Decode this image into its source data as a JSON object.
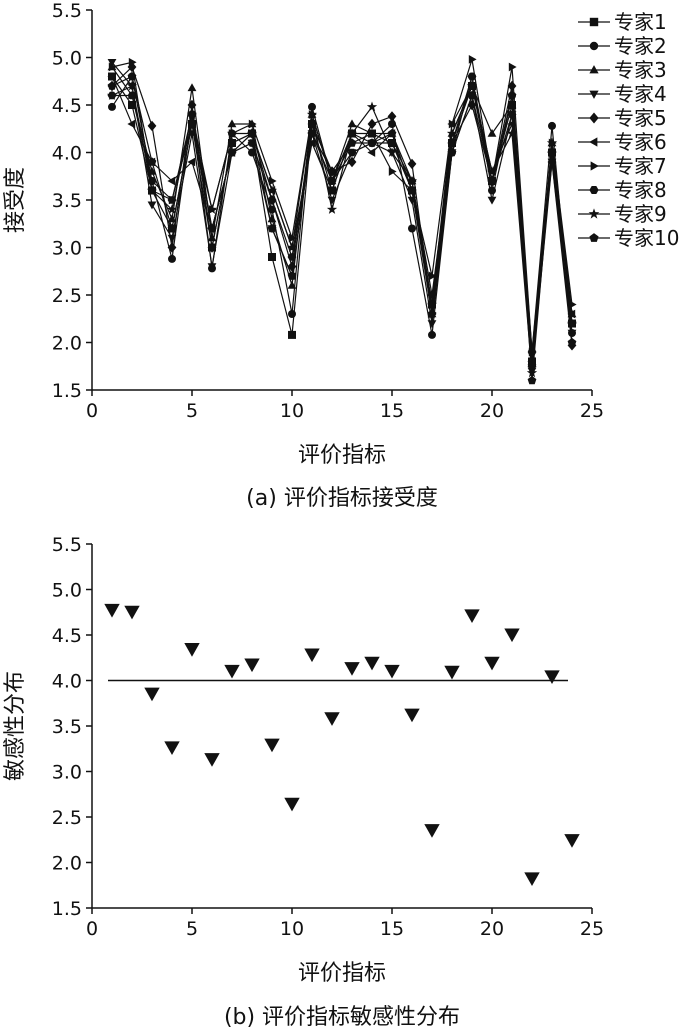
{
  "chart_data": [
    {
      "id": "a",
      "type": "line",
      "caption": "(a) 评价指标接受度",
      "xlabel": "评价指标",
      "ylabel": "接受度",
      "xlim": [
        0,
        25
      ],
      "ylim": [
        1.5,
        5.5
      ],
      "xticks": [
        0,
        5,
        10,
        15,
        20,
        25
      ],
      "yticks": [
        1.5,
        2.0,
        2.5,
        3.0,
        3.5,
        4.0,
        4.5,
        5.0,
        5.5
      ],
      "ytick_labels": [
        "1.5",
        "2.0",
        "2.5",
        "3.0",
        "3.5",
        "4.0",
        "4.5",
        "5.0",
        "5.5"
      ],
      "legend_position": "right",
      "x": [
        1,
        2,
        3,
        4,
        5,
        6,
        7,
        8,
        9,
        10,
        11,
        12,
        13,
        14,
        15,
        16,
        17,
        18,
        19,
        20,
        21,
        22,
        23,
        24
      ],
      "series": [
        {
          "name": "专家1",
          "marker": "square",
          "values": [
            4.8,
            4.5,
            3.6,
            3.2,
            4.3,
            3.0,
            4.1,
            4.2,
            2.9,
            2.08,
            4.3,
            3.6,
            4.2,
            4.2,
            4.1,
            3.6,
            2.4,
            4.1,
            4.7,
            3.7,
            4.5,
            1.8,
            4.0,
            2.2
          ]
        },
        {
          "name": "专家2",
          "marker": "circle",
          "values": [
            4.48,
            4.8,
            3.7,
            2.88,
            4.4,
            2.78,
            4.2,
            4.0,
            3.4,
            2.3,
            4.48,
            3.7,
            4.2,
            4.1,
            4.3,
            3.2,
            2.08,
            4.0,
            4.8,
            3.6,
            4.6,
            1.9,
            4.28,
            2.1
          ]
        },
        {
          "name": "专家3",
          "marker": "triangle",
          "values": [
            4.9,
            4.6,
            3.8,
            3.3,
            4.68,
            3.1,
            4.3,
            4.3,
            3.3,
            2.6,
            4.4,
            3.7,
            4.3,
            4.2,
            4.2,
            3.7,
            2.3,
            4.2,
            4.7,
            4.2,
            4.5,
            1.8,
            4.1,
            2.3
          ]
        },
        {
          "name": "专家4",
          "marker": "tri_down",
          "values": [
            4.95,
            4.7,
            3.45,
            3.1,
            4.2,
            2.8,
            4.0,
            4.1,
            3.2,
            2.7,
            4.2,
            3.5,
            4.0,
            4.1,
            4.0,
            3.5,
            2.2,
            4.0,
            4.6,
            3.5,
            4.4,
            1.7,
            3.9,
            2.1
          ]
        },
        {
          "name": "专家5",
          "marker": "diamond",
          "values": [
            4.7,
            4.9,
            4.28,
            3.0,
            4.5,
            3.0,
            4.1,
            4.2,
            3.5,
            2.8,
            4.3,
            3.8,
            3.9,
            4.3,
            4.38,
            3.88,
            2.3,
            4.1,
            4.5,
            3.7,
            4.7,
            1.9,
            3.9,
            1.97
          ]
        },
        {
          "name": "专家6",
          "marker": "tri_left",
          "values": [
            4.8,
            4.3,
            3.9,
            3.7,
            3.9,
            3.2,
            4.0,
            4.2,
            3.6,
            3.0,
            4.1,
            3.6,
            4.2,
            4.0,
            4.2,
            3.6,
            2.4,
            4.3,
            4.7,
            3.8,
            4.3,
            1.8,
            4.0,
            2.3
          ]
        },
        {
          "name": "专家7",
          "marker": "tri_right",
          "values": [
            4.9,
            4.95,
            3.6,
            3.5,
            4.3,
            3.4,
            4.2,
            4.3,
            3.7,
            3.1,
            4.4,
            3.7,
            4.1,
            4.2,
            3.8,
            3.6,
            2.7,
            4.3,
            4.98,
            3.7,
            4.9,
            1.9,
            4.1,
            2.4
          ]
        },
        {
          "name": "专家8",
          "marker": "hexagon",
          "values": [
            4.6,
            4.6,
            3.7,
            3.5,
            4.4,
            3.2,
            4.0,
            4.1,
            3.5,
            2.9,
            4.2,
            3.7,
            4.0,
            4.1,
            4.1,
            3.7,
            2.5,
            4.1,
            4.8,
            3.7,
            4.4,
            1.75,
            4.0,
            2.2
          ]
        },
        {
          "name": "专家9",
          "marker": "star",
          "values": [
            4.6,
            4.7,
            3.6,
            3.4,
            4.4,
            3.4,
            4.2,
            4.2,
            3.6,
            3.0,
            4.4,
            3.4,
            4.2,
            4.48,
            4.0,
            3.7,
            2.4,
            4.2,
            4.7,
            3.8,
            4.2,
            1.68,
            4.1,
            2.2
          ]
        },
        {
          "name": "专家10",
          "marker": "pentagon",
          "values": [
            4.7,
            4.8,
            3.9,
            3.2,
            4.3,
            3.2,
            4.0,
            4.2,
            3.2,
            2.7,
            4.2,
            3.8,
            4.1,
            4.1,
            4.2,
            3.6,
            2.3,
            4.0,
            4.6,
            3.7,
            4.6,
            1.6,
            4.0,
            2.0
          ]
        }
      ]
    },
    {
      "id": "b",
      "type": "scatter",
      "caption": "(b) 评价指标敏感性分布",
      "xlabel": "评价指标",
      "ylabel": "敏感性分布",
      "xlim": [
        0,
        25
      ],
      "ylim": [
        1.5,
        5.5
      ],
      "xticks": [
        0,
        5,
        10,
        15,
        20,
        25
      ],
      "yticks": [
        1.5,
        2.0,
        2.5,
        3.0,
        3.5,
        4.0,
        4.5,
        5.0,
        5.5
      ],
      "ytick_labels": [
        "1.5",
        "2.0",
        "2.5",
        "3.0",
        "3.5",
        "4.0",
        "4.5",
        "5.0",
        "5.5"
      ],
      "marker": "tri_down",
      "x": [
        1,
        2,
        3,
        4,
        5,
        6,
        7,
        8,
        9,
        10,
        11,
        12,
        13,
        14,
        15,
        16,
        17,
        18,
        19,
        20,
        21,
        22,
        23,
        24
      ],
      "values": [
        4.78,
        4.76,
        3.86,
        3.27,
        4.35,
        3.14,
        4.11,
        4.18,
        3.3,
        2.65,
        4.29,
        3.59,
        4.14,
        4.2,
        4.11,
        3.63,
        2.36,
        4.1,
        4.72,
        4.2,
        4.51,
        1.83,
        4.05,
        2.25
      ],
      "reference_line": {
        "y": 4.0,
        "x_from": 0.8,
        "x_to": 23.8
      }
    }
  ]
}
